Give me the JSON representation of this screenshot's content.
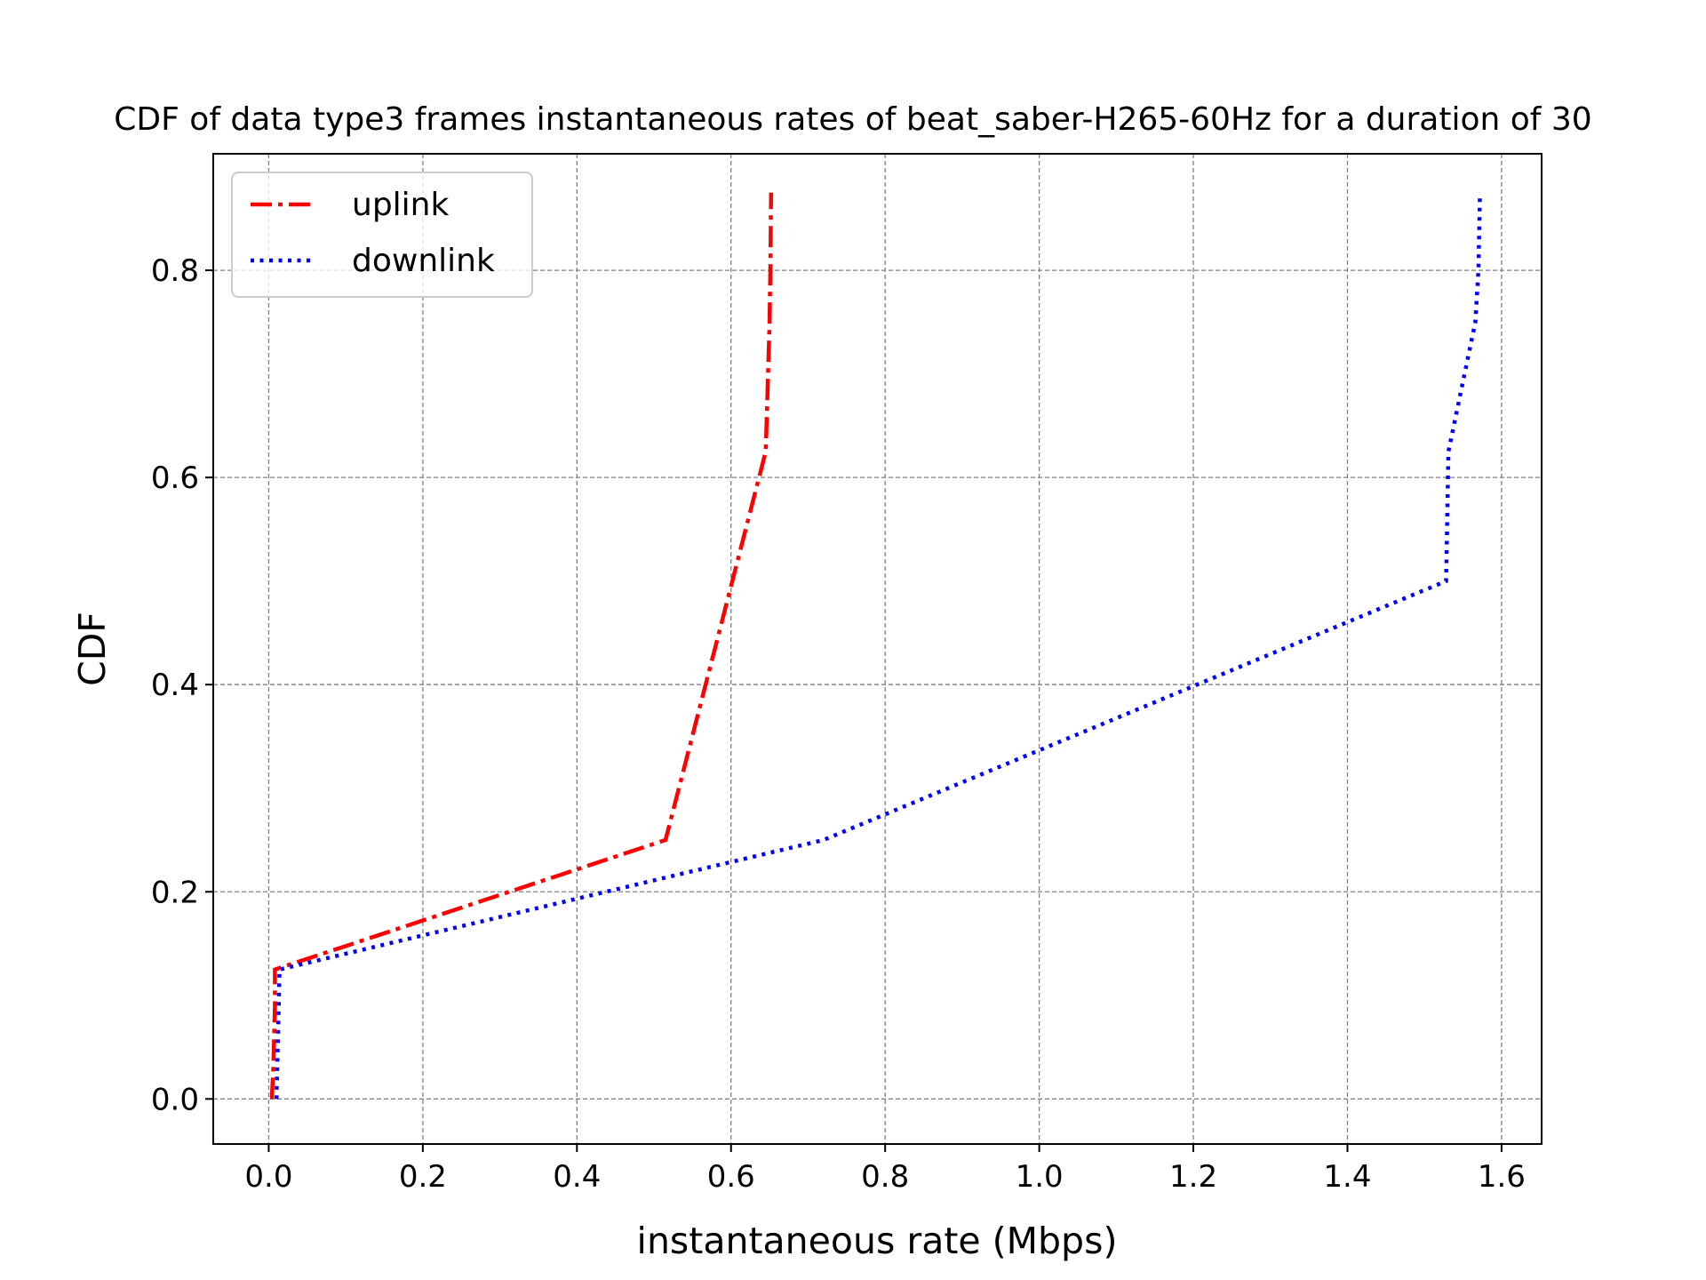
{
  "chart_data": {
    "type": "line",
    "title": "CDF of data type3 frames instantaneous rates of beat_saber-H265-60Hz for a duration of 30",
    "xlabel": "instantaneous rate (Mbps)",
    "ylabel": "CDF",
    "xlim": [
      -0.072,
      1.652
    ],
    "ylim": [
      -0.0435,
      0.9125
    ],
    "xticks": [
      0.0,
      0.2,
      0.4,
      0.6,
      0.8,
      1.0,
      1.2,
      1.4,
      1.6
    ],
    "xtick_labels": [
      "0.0",
      "0.2",
      "0.4",
      "0.6",
      "0.8",
      "1.0",
      "1.2",
      "1.4",
      "1.6"
    ],
    "yticks": [
      0.0,
      0.2,
      0.4,
      0.6,
      0.8
    ],
    "ytick_labels": [
      "0.0",
      "0.2",
      "0.4",
      "0.6",
      "0.8"
    ],
    "grid": true,
    "legend_position": "top-left",
    "series": [
      {
        "name": "uplink",
        "color": "#ff0000",
        "style": "dashdot",
        "x": [
          0.004,
          0.006,
          0.007,
          0.008,
          0.008,
          0.515,
          0.645,
          0.648,
          0.65,
          0.651,
          0.652
        ],
        "y": [
          0.0,
          0.03,
          0.06,
          0.09,
          0.125,
          0.25,
          0.625,
          0.7,
          0.75,
          0.8,
          0.875
        ]
      },
      {
        "name": "downlink",
        "color": "#0000ff",
        "style": "dotted",
        "x": [
          0.01,
          0.011,
          0.012,
          0.013,
          0.014,
          0.72,
          1.528,
          1.531,
          1.566,
          1.57,
          1.572
        ],
        "y": [
          0.0,
          0.03,
          0.06,
          0.09,
          0.125,
          0.25,
          0.5,
          0.625,
          0.75,
          0.8,
          0.875
        ]
      }
    ]
  }
}
